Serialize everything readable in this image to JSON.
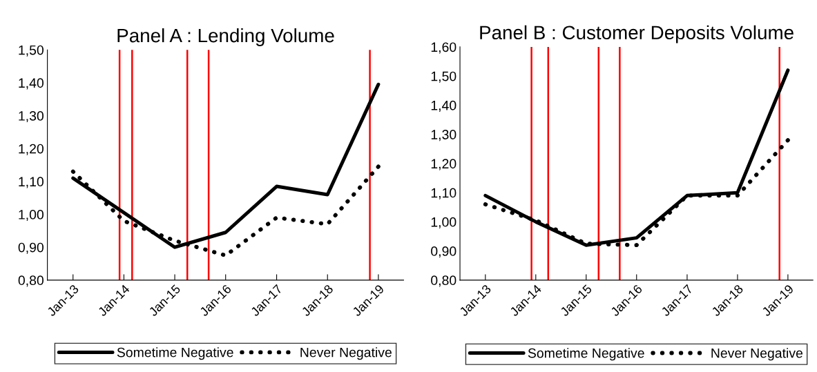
{
  "chart_data": [
    {
      "type": "line",
      "title": "Panel A : Lending Volume",
      "x": [
        "2013-01",
        "2014-01",
        "2015-01",
        "2016-01",
        "2017-01",
        "2018-01",
        "2019-01"
      ],
      "series": [
        {
          "name": "Sometime Negative",
          "color": "#000000",
          "line_style": "solid",
          "values": [
            1.11,
            1.005,
            0.9,
            0.945,
            1.085,
            1.06,
            1.395
          ]
        },
        {
          "name": "Never Negative",
          "color": "#000000",
          "line_style": "dotted",
          "values": [
            1.13,
            0.98,
            0.92,
            0.875,
            0.99,
            0.97,
            1.145
          ]
        }
      ],
      "xlim": [
        "2012-07",
        "2019-07"
      ],
      "xticks": [
        {
          "value": "2013-01",
          "label": "Jan-13"
        },
        {
          "value": "2014-01",
          "label": "Jan-14"
        },
        {
          "value": "2015-01",
          "label": "Jan-15"
        },
        {
          "value": "2016-01",
          "label": "Jan-16"
        },
        {
          "value": "2017-01",
          "label": "Jan-17"
        },
        {
          "value": "2018-01",
          "label": "Jan-18"
        },
        {
          "value": "2019-01",
          "label": "Jan-19"
        }
      ],
      "ylim": [
        0.8,
        1.5
      ],
      "yticks": [
        {
          "value": 0.8,
          "label": "0,80"
        },
        {
          "value": 0.9,
          "label": "0,90"
        },
        {
          "value": 1.0,
          "label": "1,00"
        },
        {
          "value": 1.1,
          "label": "1,10"
        },
        {
          "value": 1.2,
          "label": "1,20"
        },
        {
          "value": 1.3,
          "label": "1,30"
        },
        {
          "value": 1.4,
          "label": "1,40"
        },
        {
          "value": 1.5,
          "label": "1,50"
        }
      ],
      "ref_lines": [
        {
          "axis": "x",
          "value": "2013-12",
          "color": "#ff0000"
        },
        {
          "axis": "x",
          "value": "2014-03",
          "color": "#ff0000"
        },
        {
          "axis": "x",
          "value": "2015-04",
          "color": "#ff0000"
        },
        {
          "axis": "x",
          "value": "2015-09",
          "color": "#ff0000"
        },
        {
          "axis": "x",
          "value": "2018-11",
          "color": "#ff0000"
        }
      ],
      "grid": false,
      "legend": "bottom",
      "marker": "none"
    },
    {
      "type": "line",
      "title": "Panel B : Customer Deposits Volume",
      "x": [
        "2013-01",
        "2014-01",
        "2015-01",
        "2016-01",
        "2017-01",
        "2018-01",
        "2019-01"
      ],
      "series": [
        {
          "name": "Sometime Negative",
          "color": "#000000",
          "line_style": "solid",
          "values": [
            1.09,
            1.0,
            0.92,
            0.945,
            1.09,
            1.1,
            1.52
          ]
        },
        {
          "name": "Never Negative",
          "color": "#000000",
          "line_style": "dotted",
          "values": [
            1.06,
            1.005,
            0.925,
            0.92,
            1.09,
            1.09,
            1.28
          ]
        }
      ],
      "xlim": [
        "2012-07",
        "2019-07"
      ],
      "xticks": [
        {
          "value": "2013-01",
          "label": "Jan-13"
        },
        {
          "value": "2014-01",
          "label": "Jan-14"
        },
        {
          "value": "2015-01",
          "label": "Jan-15"
        },
        {
          "value": "2016-01",
          "label": "Jan-16"
        },
        {
          "value": "2017-01",
          "label": "Jan-17"
        },
        {
          "value": "2018-01",
          "label": "Jan-18"
        },
        {
          "value": "2019-01",
          "label": "Jan-19"
        }
      ],
      "ylim": [
        0.8,
        1.6
      ],
      "yticks": [
        {
          "value": 0.8,
          "label": "0,80"
        },
        {
          "value": 0.9,
          "label": "0,90"
        },
        {
          "value": 1.0,
          "label": "1,00"
        },
        {
          "value": 1.1,
          "label": "1,10"
        },
        {
          "value": 1.2,
          "label": "1,20"
        },
        {
          "value": 1.3,
          "label": "1,30"
        },
        {
          "value": 1.4,
          "label": "1,40"
        },
        {
          "value": 1.5,
          "label": "1,50"
        },
        {
          "value": 1.6,
          "label": "1,60"
        }
      ],
      "ref_lines": [
        {
          "axis": "x",
          "value": "2013-12",
          "color": "#ff0000"
        },
        {
          "axis": "x",
          "value": "2014-04",
          "color": "#ff0000"
        },
        {
          "axis": "x",
          "value": "2015-04",
          "color": "#ff0000"
        },
        {
          "axis": "x",
          "value": "2015-09",
          "color": "#ff0000"
        },
        {
          "axis": "x",
          "value": "2018-11",
          "color": "#ff0000"
        }
      ],
      "grid": false,
      "legend": "bottom",
      "marker": "none"
    }
  ]
}
